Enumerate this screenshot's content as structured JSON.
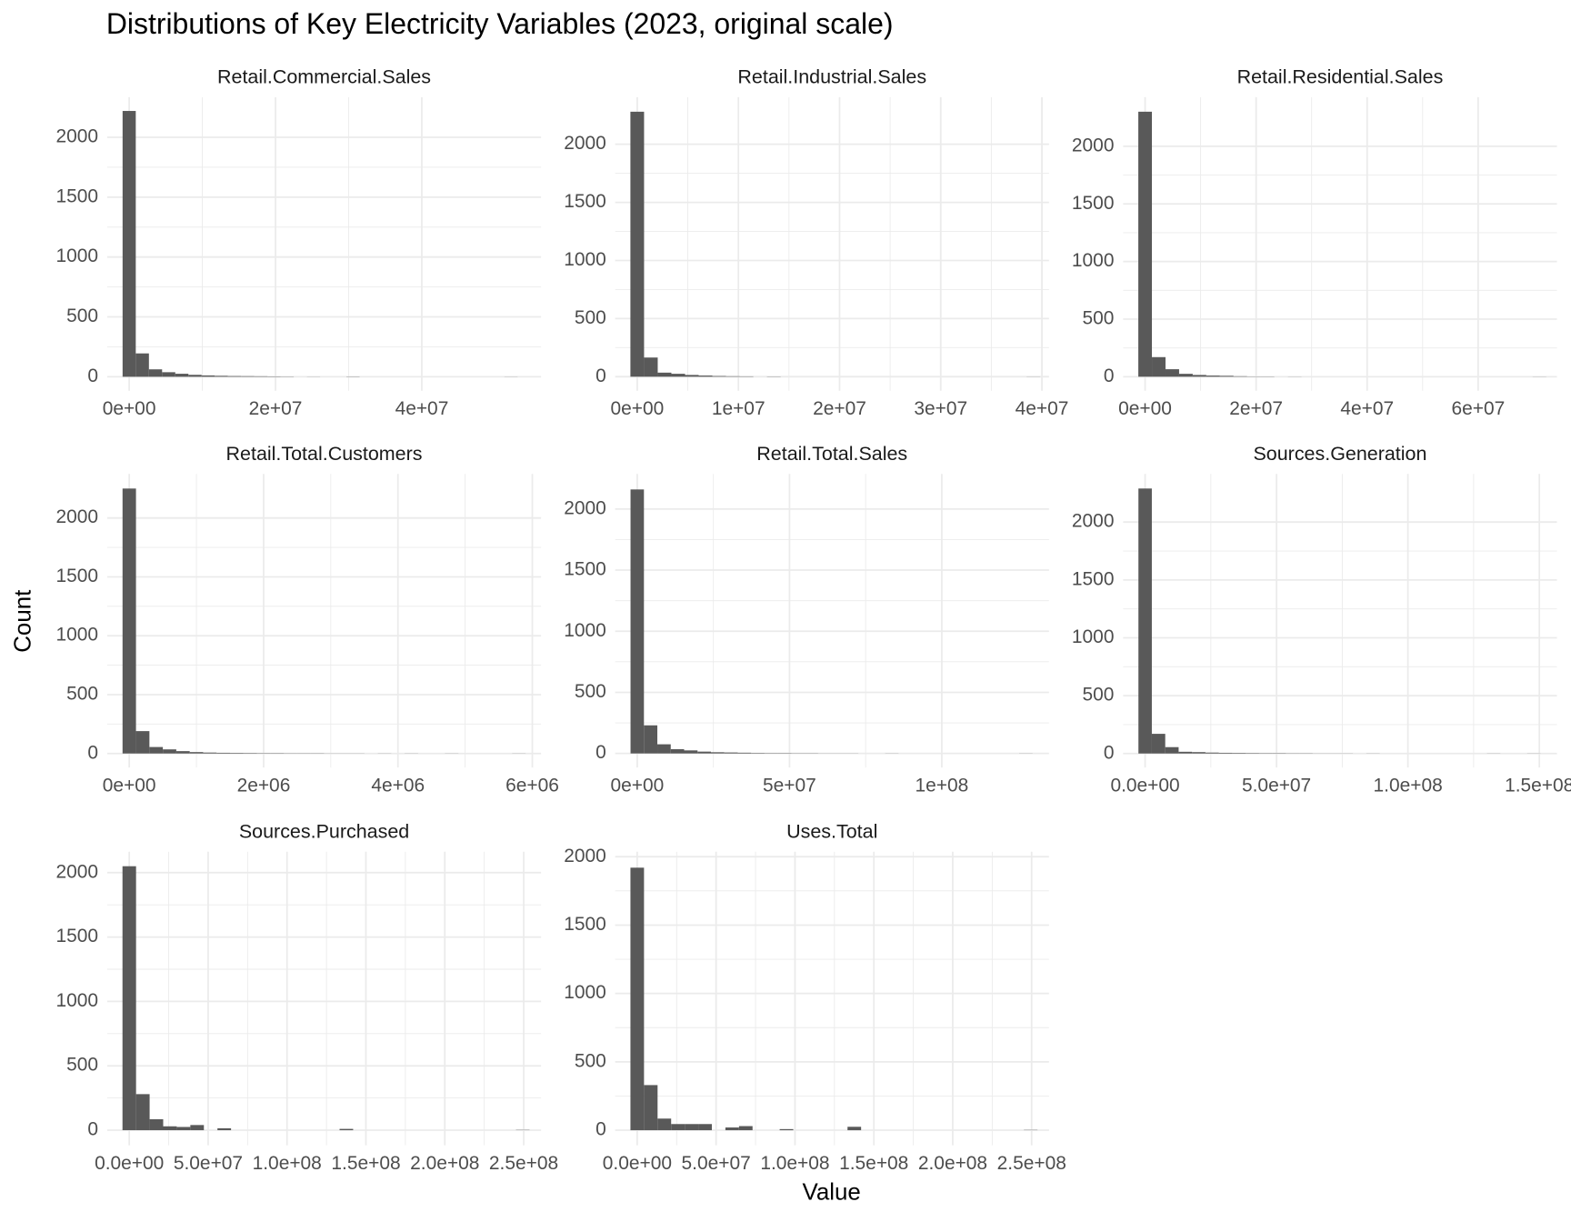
{
  "title": "Distributions of Key Electricity Variables (2023, original scale)",
  "x_label": "Value",
  "y_label": "Count",
  "chart_data": [
    {
      "type": "histogram",
      "title": "Retail.Commercial.Sales",
      "color": "#595959",
      "grid": true,
      "bins": [
        -900000.0,
        900000.0,
        2700000.0,
        4500000.0,
        6300000.0,
        8100000.0,
        9900000.0,
        11700000.0,
        13500000.0,
        15300000.0,
        17100000.0,
        18900000.0,
        20700000.0,
        22500000.0,
        24300000.0,
        26100000.0,
        27900000.0,
        29700000.0,
        31500000.0,
        33300000.0,
        35100000.0,
        36900000.0,
        38700000.0,
        40500000.0,
        42300000.0,
        44100000.0,
        45900000.0,
        47700000.0,
        49500000.0,
        51300000.0,
        53100000.0
      ],
      "counts": [
        2220,
        195,
        62,
        38,
        25,
        16,
        11,
        8,
        6,
        5,
        4,
        3,
        2,
        0,
        1,
        0,
        0,
        2,
        0,
        0,
        0,
        0,
        0,
        0,
        0,
        0,
        0,
        0,
        0,
        1
      ],
      "xlim": [
        -3000000.0,
        56300000.0
      ],
      "ylim": [
        -117,
        2335
      ],
      "xticks": [
        {
          "value": 0,
          "label": "0e+00"
        },
        {
          "value": 20000000.0,
          "label": "2e+07"
        },
        {
          "value": 40000000.0,
          "label": "4e+07"
        }
      ],
      "yticks": [
        0,
        500,
        1000,
        1500,
        2000
      ]
    },
    {
      "type": "histogram",
      "title": "Retail.Industrial.Sales",
      "color": "#595959",
      "grid": true,
      "bins": [
        -675000.0,
        675000.0,
        2025000.0,
        3375000.0,
        4725000.0,
        6075000.0,
        7425000.0,
        8775000.0,
        10125000.0,
        11475000.0,
        12825000.0,
        14175000.0,
        15525000.0,
        16875000.0,
        18225000.0,
        19575000.0,
        20925000.0,
        22275000.0,
        23625000.0,
        24975000.0,
        26325000.0,
        27675000.0,
        29025000.0,
        30375000.0,
        31725000.0,
        33075000.0,
        34425000.0,
        35775000.0,
        37125000.0,
        38475000.0,
        39825000.0
      ],
      "counts": [
        2280,
        165,
        35,
        25,
        15,
        10,
        6,
        4,
        3,
        0,
        2,
        0,
        0,
        0,
        0,
        0,
        0,
        0,
        0,
        0,
        0,
        0,
        0,
        0,
        0,
        0,
        0,
        0,
        0,
        1
      ],
      "xlim": [
        -2180000.0,
        40700000.0
      ],
      "ylim": [
        -121,
        2405
      ],
      "xticks": [
        {
          "value": 0,
          "label": "0e+00"
        },
        {
          "value": 10000000.0,
          "label": "1e+07"
        },
        {
          "value": 20000000.0,
          "label": "2e+07"
        },
        {
          "value": 30000000.0,
          "label": "3e+07"
        },
        {
          "value": 40000000.0,
          "label": "4e+07"
        }
      ],
      "yticks": [
        0,
        500,
        1000,
        1500,
        2000
      ]
    },
    {
      "type": "histogram",
      "title": "Retail.Residential.Sales",
      "color": "#595959",
      "grid": true,
      "bins": [
        -1225000.0,
        1225000.0,
        3675000.0,
        6125000.0,
        8575000.0,
        11025000.0,
        13475000.0,
        15925000.0,
        18375000.0,
        20825000.0,
        23275000.0,
        25725000.0,
        28175000.0,
        30625000.0,
        33075000.0,
        35525000.0,
        37975000.0,
        40425000.0,
        42875000.0,
        45325000.0,
        47775000.0,
        50225000.0,
        52675000.0,
        55125000.0,
        57575000.0,
        60025000.0,
        62475000.0,
        64925000.0,
        67375000.0,
        69825000.0,
        72275000.0
      ],
      "counts": [
        2300,
        170,
        65,
        25,
        15,
        10,
        8,
        4,
        2,
        2,
        0,
        1,
        0,
        0,
        0,
        0,
        0,
        0,
        0,
        0,
        0,
        0,
        0,
        0,
        0,
        0,
        0,
        0,
        0,
        1
      ],
      "xlim": [
        -3960000.0,
        74200000.0
      ],
      "ylim": [
        -122,
        2426
      ],
      "xticks": [
        {
          "value": 0,
          "label": "0e+00"
        },
        {
          "value": 20000000.0,
          "label": "2e+07"
        },
        {
          "value": 40000000.0,
          "label": "4e+07"
        },
        {
          "value": 60000000.0,
          "label": "6e+07"
        }
      ],
      "yticks": [
        0,
        500,
        1000,
        1500,
        2000
      ]
    },
    {
      "type": "histogram",
      "title": "Retail.Total.Customers",
      "color": "#595959",
      "grid": true,
      "bins": [
        -100000.0,
        100000.0,
        300000.0,
        500000.0,
        700000.0,
        900000.0,
        1100000.0,
        1300000.0,
        1500000.0,
        1700000.0,
        1900000.0,
        2100000.0,
        2300000.0,
        2500000.0,
        2700000.0,
        2900000.0,
        3100000.0,
        3300000.0,
        3500000.0,
        3700000.0,
        3900000.0,
        4100000.0,
        4300000.0,
        4500000.0,
        4700000.0,
        4900000.0,
        5100000.0,
        5300000.0,
        5500000.0,
        5700000.0,
        5900000.0
      ],
      "counts": [
        2250,
        190,
        55,
        35,
        20,
        12,
        8,
        6,
        5,
        4,
        3,
        3,
        2,
        2,
        2,
        1,
        1,
        1,
        0,
        1,
        0,
        1,
        0,
        0,
        1,
        0,
        0,
        0,
        0,
        1
      ],
      "xlim": [
        -328000.0,
        6130000.0
      ],
      "ylim": [
        -119,
        2374
      ],
      "xticks": [
        {
          "value": 0,
          "label": "0e+00"
        },
        {
          "value": 2000000.0,
          "label": "2e+06"
        },
        {
          "value": 4000000.0,
          "label": "4e+06"
        },
        {
          "value": 6000000.0,
          "label": "6e+06"
        }
      ],
      "yticks": [
        0,
        500,
        1000,
        1500,
        2000
      ]
    },
    {
      "type": "histogram",
      "title": "Retail.Total.Sales",
      "color": "#595959",
      "grid": true,
      "bins": [
        -2200000.0,
        2200000.0,
        6600000.0,
        11000000.0,
        15400000.0,
        19800000.0,
        24200000.0,
        28600000.0,
        33000000.0,
        37400000.0,
        41800000.0,
        46200000.0,
        50600000.0,
        55000000.0,
        59400000.0,
        63800000.0,
        68200000.0,
        72600000.0,
        77000000.0,
        81400000.0,
        85800000.0,
        90200000.0,
        94600000.0,
        99000000.0,
        103400000.0,
        107800000.0,
        112200000.0,
        116600000.0,
        121000000.0,
        125400000.0,
        129800000.0
      ],
      "counts": [
        2160,
        230,
        75,
        35,
        25,
        15,
        10,
        8,
        6,
        4,
        3,
        3,
        2,
        2,
        1,
        1,
        1,
        0,
        0,
        1,
        0,
        0,
        0,
        0,
        0,
        0,
        0,
        0,
        0,
        1
      ],
      "xlim": [
        -7240000.0,
        135200000.0
      ],
      "ylim": [
        -115,
        2287
      ],
      "xticks": [
        {
          "value": 0,
          "label": "0e+00"
        },
        {
          "value": 50000000.0,
          "label": "5e+07"
        },
        {
          "value": 100000000.0,
          "label": "1e+08"
        }
      ],
      "yticks": [
        0,
        500,
        1000,
        1500,
        2000
      ]
    },
    {
      "type": "histogram",
      "title": "Sources.Generation",
      "color": "#595959",
      "grid": true,
      "bins": [
        -2550000.0,
        2550000.0,
        7650000.0,
        12750000.0,
        17850000.0,
        22950000.0,
        28050000.0,
        33150000.0,
        38250000.0,
        43350000.0,
        48450000.0,
        53550000.0,
        58650000.0,
        63750000.0,
        68850000.0,
        73950000.0,
        79050000.0,
        84150000.0,
        89250000.0,
        94350000.0,
        99450000.0,
        104550000.0,
        109650000.0,
        114750000.0,
        119850000.0,
        124950000.0,
        130050000.0,
        135150000.0,
        140250000.0,
        145350000.0,
        150450000.0
      ],
      "counts": [
        2290,
        170,
        55,
        15,
        12,
        8,
        6,
        5,
        4,
        3,
        3,
        2,
        2,
        1,
        1,
        1,
        0,
        1,
        0,
        0,
        0,
        0,
        0,
        0,
        0,
        0,
        1,
        0,
        0,
        1
      ],
      "xlim": [
        -8370000.0,
        156700000.0
      ],
      "ylim": [
        -121,
        2416
      ],
      "xticks": [
        {
          "value": 0,
          "label": "0.0e+00"
        },
        {
          "value": 50000000.0,
          "label": "5.0e+07"
        },
        {
          "value": 100000000.0,
          "label": "1.0e+08"
        },
        {
          "value": 150000000.0,
          "label": "1.5e+08"
        }
      ],
      "yticks": [
        0,
        500,
        1000,
        1500,
        2000
      ]
    },
    {
      "type": "histogram",
      "title": "Sources.Purchased",
      "color": "#595959",
      "grid": true,
      "bins": [
        -4300000.0,
        4300000.0,
        12900000.0,
        21500000.0,
        30100000.0,
        38700000.0,
        47300000.0,
        55900000.0,
        64500000.0,
        73100000.0,
        81700000.0,
        90300000.0,
        98900000.0,
        107500000.0,
        116100000.0,
        124700000.0,
        133300000.0,
        141900000.0,
        150500000.0,
        159100000.0,
        167700000.0,
        176300000.0,
        184900000.0,
        193500000.0,
        202100000.0,
        210700000.0,
        219300000.0,
        227900000.0,
        236500000.0,
        245100000.0,
        253700000.0
      ],
      "counts": [
        2050,
        280,
        85,
        30,
        25,
        40,
        0,
        15,
        0,
        0,
        0,
        0,
        0,
        0,
        0,
        0,
        10,
        0,
        0,
        0,
        0,
        0,
        0,
        0,
        0,
        0,
        0,
        0,
        0,
        2
      ],
      "xlim": [
        -13970000.0,
        261000000.0
      ],
      "ylim": [
        -117,
        2163
      ],
      "xticks": [
        {
          "value": 0,
          "label": "0.0e+00"
        },
        {
          "value": 50000000.0,
          "label": "5.0e+07"
        },
        {
          "value": 100000000.0,
          "label": "1.0e+08"
        },
        {
          "value": 150000000.0,
          "label": "1.5e+08"
        },
        {
          "value": 200000000.0,
          "label": "2.0e+08"
        },
        {
          "value": 250000000.0,
          "label": "2.5e+08"
        }
      ],
      "yticks": [
        0,
        500,
        1000,
        1500,
        2000
      ]
    },
    {
      "type": "histogram",
      "title": "Uses.Total",
      "color": "#595959",
      "grid": true,
      "bins": [
        -4300000.0,
        4300000.0,
        12900000.0,
        21500000.0,
        30100000.0,
        38700000.0,
        47300000.0,
        55900000.0,
        64500000.0,
        73100000.0,
        81700000.0,
        90300000.0,
        98900000.0,
        107500000.0,
        116100000.0,
        124700000.0,
        133300000.0,
        141900000.0,
        150500000.0,
        159100000.0,
        167700000.0,
        176300000.0,
        184900000.0,
        193500000.0,
        202100000.0,
        210700000.0,
        219300000.0,
        227900000.0,
        236500000.0,
        245100000.0,
        253700000.0
      ],
      "counts": [
        1920,
        330,
        85,
        45,
        45,
        45,
        0,
        20,
        30,
        0,
        0,
        8,
        0,
        0,
        0,
        0,
        25,
        0,
        0,
        0,
        0,
        0,
        0,
        0,
        0,
        0,
        0,
        0,
        0,
        2
      ],
      "xlim": [
        -13970000.0,
        261000000.0
      ],
      "ylim": [
        -110,
        2037
      ],
      "xticks": [
        {
          "value": 0,
          "label": "0.0e+00"
        },
        {
          "value": 50000000.0,
          "label": "5.0e+07"
        },
        {
          "value": 100000000.0,
          "label": "1.0e+08"
        },
        {
          "value": 150000000.0,
          "label": "1.5e+08"
        },
        {
          "value": 200000000.0,
          "label": "2.0e+08"
        },
        {
          "value": 250000000.0,
          "label": "2.5e+08"
        }
      ],
      "yticks": [
        0,
        500,
        1000,
        1500,
        2000
      ]
    }
  ]
}
